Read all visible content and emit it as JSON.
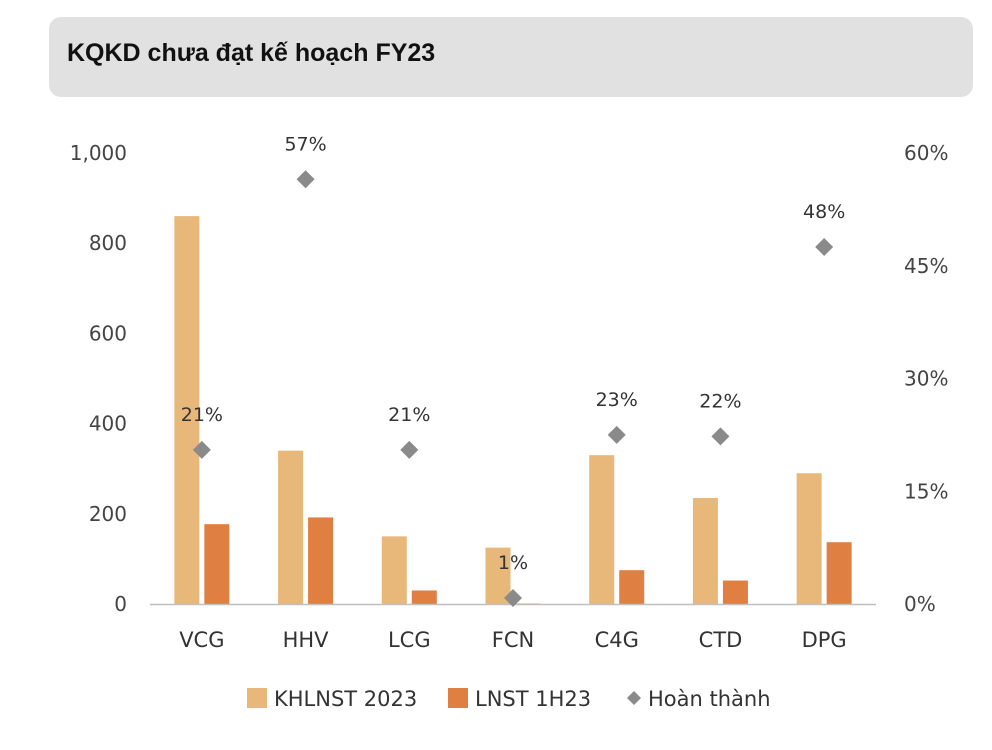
{
  "header": {
    "title": "KQKD chưa đạt kế hoạch FY23"
  },
  "colors": {
    "khlnst": "#e8b87a",
    "lnst": "#e07f42",
    "hoan_thanh": "#8a8a8a",
    "axis": "#bfbfbf"
  },
  "chart_data": {
    "type": "bar",
    "title": "KQKD chưa đạt kế hoạch FY23",
    "categories": [
      "VCG",
      "HHV",
      "LCG",
      "FCN",
      "C4G",
      "CTD",
      "DPG"
    ],
    "series": [
      {
        "name": "KHLNST 2023",
        "type": "bar",
        "axis": "left",
        "values": [
          860,
          340,
          150,
          125,
          330,
          235,
          290
        ]
      },
      {
        "name": "LNST 1H23",
        "type": "bar",
        "axis": "left",
        "values": [
          177,
          192,
          30,
          1,
          75,
          52,
          137
        ]
      },
      {
        "name": "Hoàn thành",
        "type": "scatter",
        "axis": "right",
        "values": [
          20.5,
          56.5,
          20.5,
          0.8,
          22.5,
          22.3,
          47.5
        ],
        "labels": [
          "21%",
          "57%",
          "21%",
          "1%",
          "23%",
          "22%",
          "48%"
        ]
      }
    ],
    "y_left": {
      "ylim": [
        0,
        1000
      ],
      "ticks": [
        "0",
        "200",
        "400",
        "600",
        "800",
        "1,000"
      ],
      "tick_values": [
        0,
        200,
        400,
        600,
        800,
        1000
      ]
    },
    "y_right": {
      "ylim": [
        0,
        60
      ],
      "ticks": [
        "0%",
        "15%",
        "30%",
        "45%",
        "60%"
      ],
      "tick_values": [
        0,
        15,
        30,
        45,
        60
      ]
    },
    "legend": {
      "position": "bottom",
      "items": [
        "KHLNST 2023",
        "LNST 1H23",
        "Hoàn thành"
      ]
    },
    "grid": false
  }
}
